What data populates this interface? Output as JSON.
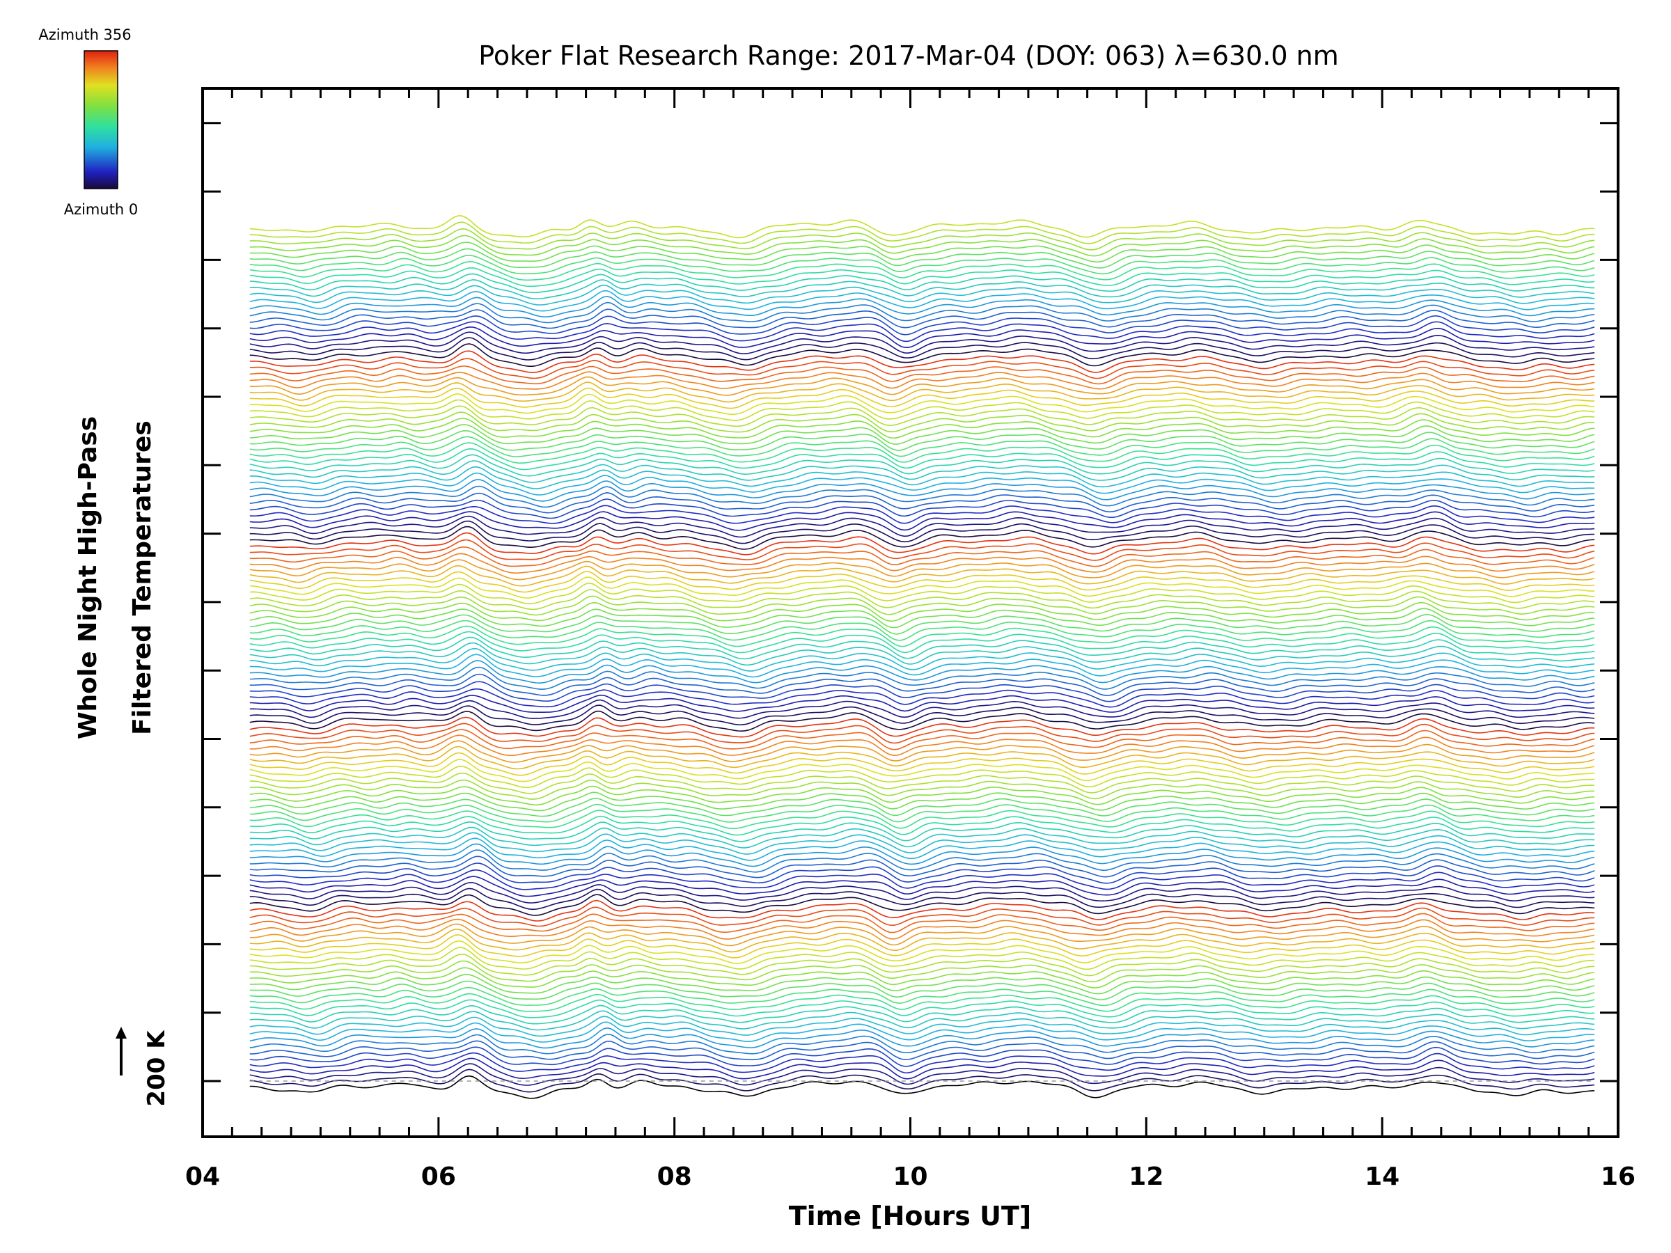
{
  "chart_data": {
    "type": "line",
    "title": "Poker Flat Research Range: 2017-Mar-04 (DOY: 063) λ=630.0 nm",
    "xlabel": "Time [Hours UT]",
    "ylabel_line1": "Whole Night High-Pass",
    "ylabel_line2": "Filtered Temperatures",
    "xlim": [
      4,
      16
    ],
    "x_ticks": [
      "04",
      "06",
      "08",
      "10",
      "12",
      "14",
      "16"
    ],
    "x_tick_values": [
      4,
      6,
      8,
      10,
      12,
      14,
      16
    ],
    "data_x_range": [
      4.4,
      15.8
    ],
    "scale_bar_label": "200 K",
    "scale_bar_kelvin": 200,
    "colorbar": {
      "label_top": "Azimuth 356",
      "label_bottom": "Azimuth 0",
      "min": 0,
      "max": 356,
      "colormap": "rainbow"
    },
    "series_count": 142,
    "azimuth_step_deg": 12,
    "series_offset_kelvin": 22,
    "grid": false,
    "legend": "colorbar top-left"
  }
}
